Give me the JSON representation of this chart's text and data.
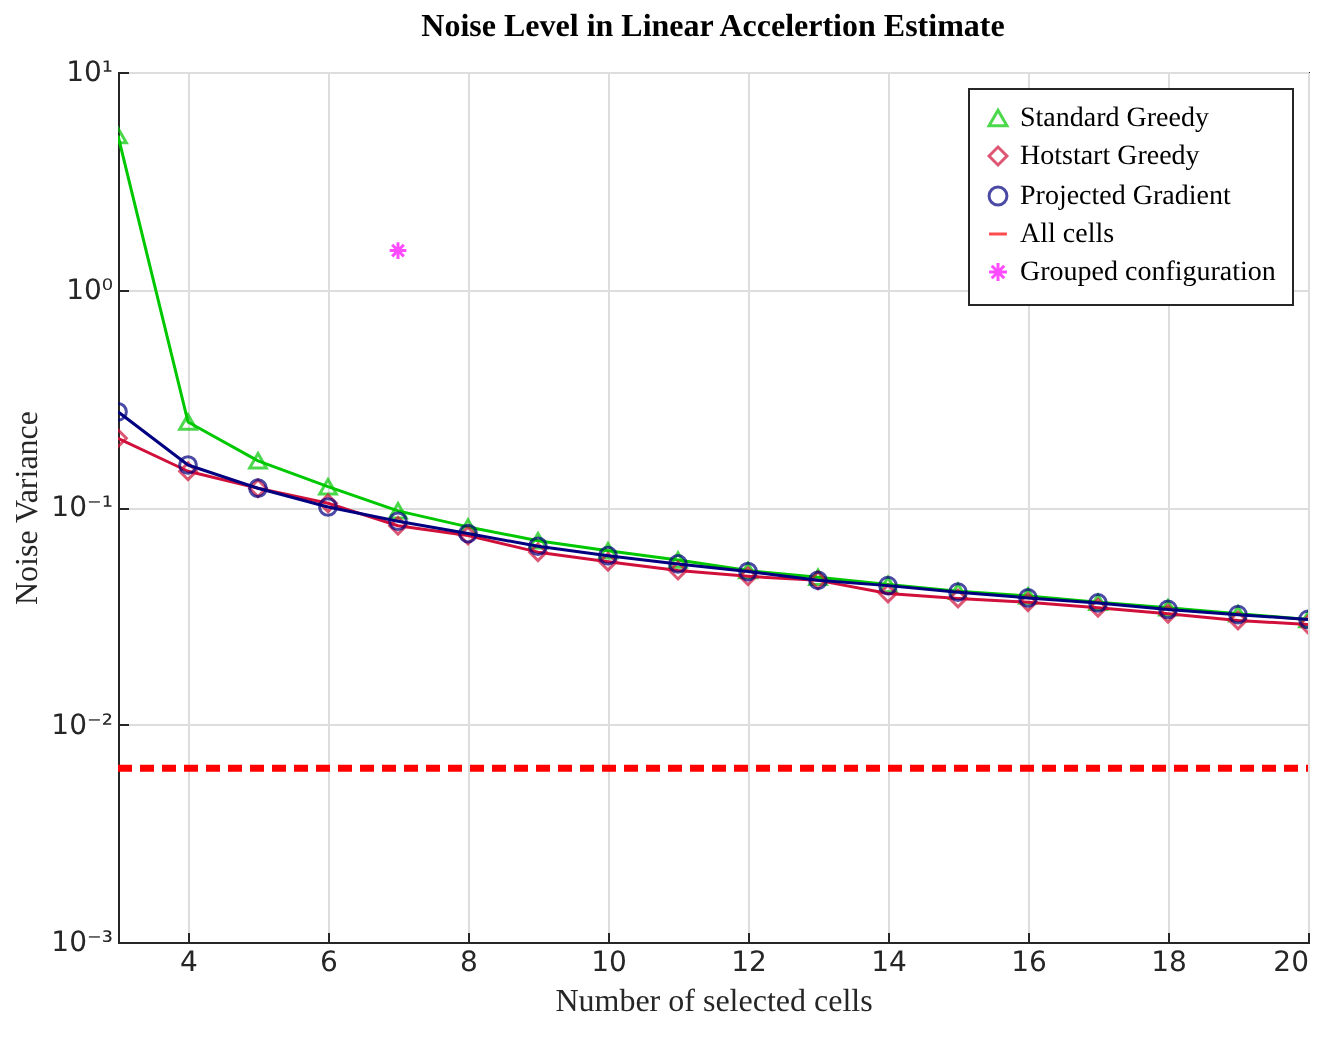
{
  "chart_data": {
    "type": "line",
    "title": "Noise Level in Linear Accelertion Estimate",
    "xlabel": "Number of selected cells",
    "ylabel": "Noise Variance",
    "x": [
      3,
      4,
      5,
      6,
      7,
      8,
      9,
      10,
      11,
      12,
      13,
      14,
      15,
      16,
      17,
      18,
      19,
      20
    ],
    "series": [
      {
        "name": "Standard Greedy",
        "color": "#00c800",
        "marker": "triangle",
        "values": [
          5.1,
          0.246,
          0.163,
          0.124,
          0.096,
          0.081,
          0.07,
          0.063,
          0.057,
          0.051,
          0.0475,
          0.044,
          0.041,
          0.039,
          0.0365,
          0.0344,
          0.0323,
          0.0304
        ]
      },
      {
        "name": "Hotstart Greedy",
        "color": "#d0103a",
        "marker": "diamond",
        "values": [
          0.207,
          0.146,
          0.122,
          0.104,
          0.082,
          0.074,
          0.062,
          0.056,
          0.051,
          0.048,
          0.046,
          0.04,
          0.038,
          0.0365,
          0.0344,
          0.0323,
          0.0301,
          0.0288
        ]
      },
      {
        "name": "Projected Gradient",
        "color": "#000080",
        "marker": "circle",
        "values": [
          0.274,
          0.156,
          0.122,
          0.1,
          0.086,
          0.0755,
          0.066,
          0.0597,
          0.0547,
          0.0505,
          0.046,
          0.0435,
          0.0406,
          0.0382,
          0.0362,
          0.0338,
          0.032,
          0.0304
        ]
      },
      {
        "name": "All cells",
        "color": "#ff0000",
        "marker": "none",
        "line_style": "dashed",
        "values": [
          0.0063,
          0.0063,
          0.0063,
          0.0063,
          0.0063,
          0.0063,
          0.0063,
          0.0063,
          0.0063,
          0.0063,
          0.0063,
          0.0063,
          0.0063,
          0.0063,
          0.0063,
          0.0063,
          0.0063,
          0.0063
        ]
      },
      {
        "name": "Grouped configuration",
        "type": "scatter",
        "color": "#ff00ff",
        "marker": "cross",
        "x": [
          7
        ],
        "values": [
          1.51
        ]
      }
    ],
    "xlim": [
      3,
      20
    ],
    "xticks": [
      4,
      6,
      8,
      10,
      12,
      14,
      16,
      18,
      20
    ],
    "log": "y",
    "ylim": [
      0.001,
      10
    ],
    "yticks": [
      {
        "value": 0.001,
        "label": "10⁻³"
      },
      {
        "value": 0.01,
        "label": "10⁻²"
      },
      {
        "value": 0.1,
        "label": "10⁻¹"
      },
      {
        "value": 1,
        "label": "10⁰"
      },
      {
        "value": 10,
        "label": "10¹"
      }
    ],
    "grid": true,
    "legend": "top right"
  }
}
